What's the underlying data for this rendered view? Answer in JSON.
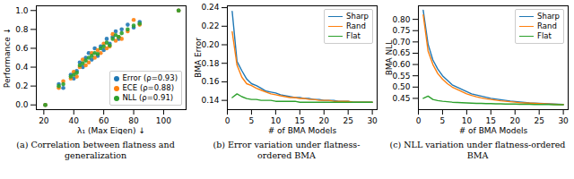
{
  "chart_data": [
    {
      "type": "scatter",
      "title": "(a) Correlation between flatness and generalization",
      "x_label": "λ₁ (Max Eigen) ↓",
      "y_label": "Performance ↓",
      "x": [
        21,
        30,
        33,
        38,
        40,
        42,
        44,
        46,
        48,
        50,
        52,
        54,
        56,
        58,
        60,
        62,
        64,
        66,
        68,
        70,
        72,
        76,
        80,
        84,
        110
      ],
      "series": [
        {
          "name": "Error (ρ=0.93)",
          "color": "#1f77b4",
          "marker": "circle",
          "values": [
            0.0,
            0.22,
            0.18,
            0.32,
            0.28,
            0.36,
            0.45,
            0.4,
            0.5,
            0.55,
            0.48,
            0.6,
            0.52,
            0.62,
            0.58,
            0.7,
            0.65,
            0.72,
            0.78,
            0.7,
            0.8,
            0.85,
            0.82,
            0.88,
            1.0
          ]
        },
        {
          "name": "ECE (ρ=0.88)",
          "color": "#ff7f0e",
          "marker": "circle",
          "values": [
            0.0,
            0.18,
            0.25,
            0.28,
            0.35,
            0.3,
            0.4,
            0.48,
            0.42,
            0.45,
            0.55,
            0.5,
            0.58,
            0.55,
            0.65,
            0.6,
            0.62,
            0.75,
            0.68,
            0.72,
            0.7,
            0.78,
            0.9,
            0.85,
            1.0
          ]
        },
        {
          "name": "NLL (ρ=0.91)",
          "color": "#2ca02c",
          "marker": "circle",
          "values": [
            0.0,
            0.2,
            0.22,
            0.3,
            0.32,
            0.34,
            0.42,
            0.44,
            0.47,
            0.5,
            0.52,
            0.55,
            0.54,
            0.6,
            0.62,
            0.66,
            0.63,
            0.7,
            0.74,
            0.72,
            0.76,
            0.8,
            0.84,
            0.86,
            1.0
          ]
        }
      ],
      "xlim": [
        15,
        115
      ],
      "xticks": [
        20,
        40,
        60,
        80,
        100
      ],
      "ylim": [
        -0.05,
        1.05
      ],
      "yticks": [
        {
          "value": 0,
          "label": "0.0"
        },
        0.2,
        0.4,
        0.6,
        0.8,
        {
          "value": 1,
          "label": "1.0"
        }
      ],
      "legend": "lower right",
      "grid": false
    },
    {
      "type": "line",
      "title": "(b) Error variation under flatness-ordered BMA",
      "x_label": "# of BMA Models",
      "y_label": "BMA Error",
      "x": [
        1,
        2,
        3,
        4,
        5,
        6,
        7,
        8,
        9,
        10,
        11,
        12,
        13,
        14,
        15,
        16,
        17,
        18,
        19,
        20,
        21,
        22,
        23,
        24,
        25,
        26,
        27,
        28,
        29,
        30
      ],
      "series": [
        {
          "name": "Sharp",
          "color": "#1f77b4",
          "values": [
            0.236,
            0.182,
            0.172,
            0.163,
            0.158,
            0.156,
            0.153,
            0.15,
            0.149,
            0.148,
            0.146,
            0.145,
            0.144,
            0.143,
            0.143,
            0.142,
            0.142,
            0.141,
            0.141,
            0.14,
            0.14,
            0.14,
            0.139,
            0.139,
            0.139,
            0.138,
            0.138,
            0.138,
            0.138,
            0.138
          ]
        },
        {
          "name": "Rand",
          "color": "#ff7f0e",
          "values": [
            0.214,
            0.178,
            0.165,
            0.158,
            0.156,
            0.153,
            0.151,
            0.149,
            0.147,
            0.146,
            0.145,
            0.144,
            0.143,
            0.143,
            0.142,
            0.142,
            0.141,
            0.141,
            0.14,
            0.14,
            0.14,
            0.139,
            0.139,
            0.139,
            0.139,
            0.138,
            0.138,
            0.138,
            0.138,
            0.138
          ]
        },
        {
          "name": "Flat",
          "color": "#2ca02c",
          "values": [
            0.143,
            0.147,
            0.144,
            0.142,
            0.141,
            0.141,
            0.14,
            0.14,
            0.14,
            0.139,
            0.139,
            0.139,
            0.139,
            0.139,
            0.138,
            0.138,
            0.138,
            0.138,
            0.138,
            0.138,
            0.138,
            0.138,
            0.138,
            0.138,
            0.138,
            0.138,
            0.138,
            0.138,
            0.138,
            0.138
          ]
        }
      ],
      "xlim": [
        0,
        31
      ],
      "xticks": [
        0,
        5,
        10,
        15,
        20,
        25,
        30
      ],
      "ylim": [
        0.13,
        0.242
      ],
      "yticks": [
        0.14,
        0.16,
        0.18,
        {
          "value": 0.2,
          "label": "0.20"
        },
        0.22,
        0.24
      ],
      "legend": "upper right",
      "grid": false
    },
    {
      "type": "line",
      "title": "(c) NLL variation under flatness-ordered BMA",
      "x_label": "# of BMA Models",
      "y_label": "BMA NLL",
      "x": [
        1,
        2,
        3,
        4,
        5,
        6,
        7,
        8,
        9,
        10,
        11,
        12,
        13,
        14,
        15,
        16,
        17,
        18,
        19,
        20,
        21,
        22,
        23,
        24,
        25,
        26,
        27,
        28,
        29,
        30
      ],
      "series": [
        {
          "name": "Sharp",
          "color": "#1f77b4",
          "values": [
            0.84,
            0.69,
            0.62,
            0.58,
            0.55,
            0.53,
            0.51,
            0.5,
            0.49,
            0.48,
            0.47,
            0.465,
            0.46,
            0.455,
            0.45,
            0.447,
            0.444,
            0.441,
            0.438,
            0.436,
            0.434,
            0.432,
            0.43,
            0.429,
            0.428,
            0.427,
            0.426,
            0.425,
            0.424,
            0.423
          ]
        },
        {
          "name": "Rand",
          "color": "#ff7f0e",
          "values": [
            0.82,
            0.66,
            0.6,
            0.56,
            0.535,
            0.515,
            0.5,
            0.49,
            0.48,
            0.47,
            0.463,
            0.457,
            0.452,
            0.448,
            0.445,
            0.442,
            0.439,
            0.437,
            0.435,
            0.433,
            0.431,
            0.43,
            0.429,
            0.428,
            0.427,
            0.426,
            0.425,
            0.424,
            0.423,
            0.423
          ]
        },
        {
          "name": "Flat",
          "color": "#2ca02c",
          "values": [
            0.45,
            0.46,
            0.445,
            0.44,
            0.437,
            0.435,
            0.433,
            0.432,
            0.431,
            0.43,
            0.429,
            0.428,
            0.428,
            0.427,
            0.427,
            0.426,
            0.426,
            0.425,
            0.425,
            0.425,
            0.424,
            0.424,
            0.424,
            0.423,
            0.423,
            0.423,
            0.423,
            0.422,
            0.422,
            0.422
          ]
        }
      ],
      "xlim": [
        0,
        31
      ],
      "xticks": [
        0,
        5,
        10,
        15,
        20,
        25,
        30
      ],
      "ylim": [
        0.4,
        0.86
      ],
      "yticks": [
        0.45,
        {
          "value": 0.5,
          "label": "0.50"
        },
        0.55,
        {
          "value": 0.6,
          "label": "0.60"
        },
        0.65,
        {
          "value": 0.7,
          "label": "0.70"
        },
        0.75,
        {
          "value": 0.8,
          "label": "0.80"
        }
      ],
      "legend": "upper right",
      "grid": false
    }
  ]
}
